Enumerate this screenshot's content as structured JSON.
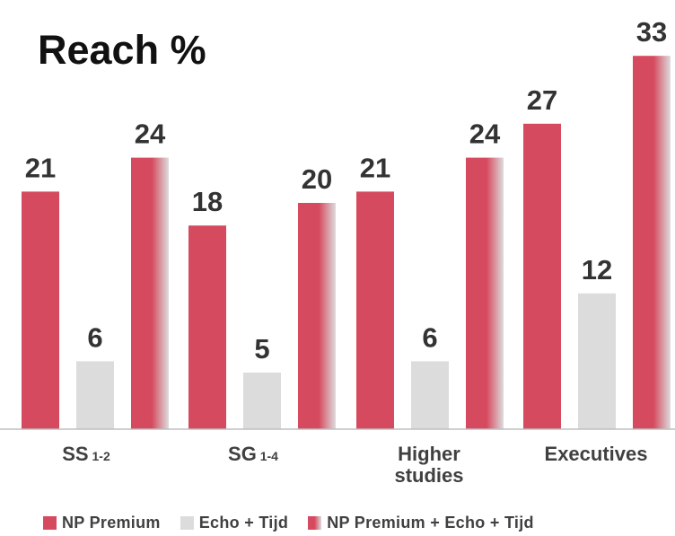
{
  "title": "Reach %",
  "colors": {
    "np_premium": "#d64a5f",
    "echo_tijd": "#dcdcdc",
    "combined_start": "#d64a5f",
    "combined_end": "#dcdcdc",
    "labels": "#333333",
    "axis": "#bfbfbf"
  },
  "chart_data": {
    "type": "bar",
    "title": "Reach %",
    "categories": [
      {
        "main": "SS",
        "sub": "1-2"
      },
      {
        "main": "SG",
        "sub": "1-4"
      },
      {
        "main": "Higher",
        "sub": "studies"
      },
      {
        "main": "Executives",
        "sub": ""
      }
    ],
    "series": [
      {
        "name": "NP Premium",
        "values": [
          21,
          18,
          21,
          27
        ]
      },
      {
        "name": "Echo + Tijd",
        "values": [
          6,
          5,
          6,
          12
        ]
      },
      {
        "name": "NP Premium + Echo + Tijd",
        "values": [
          24,
          20,
          24,
          33
        ]
      }
    ],
    "ylim": [
      0,
      34
    ],
    "grid": false,
    "legend_position": "bottom"
  }
}
